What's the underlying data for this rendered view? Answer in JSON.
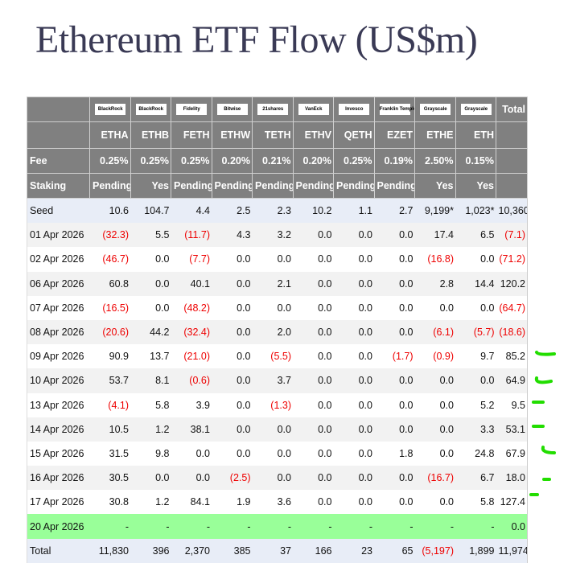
{
  "title": "Ethereum ETF Flow (US$m)",
  "issuers": [
    "BlackRock",
    "BlackRock",
    "Fidelity",
    "Bitwise",
    "21shares",
    "VanEck",
    "Invesco",
    "Franklin Templeton",
    "Grayscale",
    "Grayscale"
  ],
  "tickers": [
    "ETHA",
    "ETHB",
    "FETH",
    "ETHW",
    "TETH",
    "ETHV",
    "QETH",
    "EZET",
    "ETHE",
    "ETH"
  ],
  "total_label": "Total",
  "fee_label": "Fee",
  "fees": [
    "0.25%",
    "0.25%",
    "0.25%",
    "0.20%",
    "0.21%",
    "0.20%",
    "0.25%",
    "0.19%",
    "2.50%",
    "0.15%"
  ],
  "staking_label": "Staking",
  "staking": [
    "Pending",
    "Yes",
    "Pending",
    "Pending",
    "Pending",
    "Pending",
    "Pending",
    "Pending",
    "Yes",
    "Yes"
  ],
  "rows": [
    {
      "label": "Seed",
      "values": [
        "10.6",
        "104.7",
        "4.4",
        "2.5",
        "2.3",
        "10.2",
        "1.1",
        "2.7",
        "9,199*",
        "1,023*",
        "10,360"
      ],
      "style": "seed"
    },
    {
      "label": "01 Apr 2026",
      "values": [
        "(32.3)",
        "5.5",
        "(11.7)",
        "4.3",
        "3.2",
        "0.0",
        "0.0",
        "0.0",
        "17.4",
        "6.5",
        "(7.1)"
      ]
    },
    {
      "label": "02 Apr 2026",
      "values": [
        "(46.7)",
        "0.0",
        "(7.7)",
        "0.0",
        "0.0",
        "0.0",
        "0.0",
        "0.0",
        "(16.8)",
        "0.0",
        "(71.2)"
      ]
    },
    {
      "label": "06 Apr 2026",
      "values": [
        "60.8",
        "0.0",
        "40.1",
        "0.0",
        "2.1",
        "0.0",
        "0.0",
        "0.0",
        "2.8",
        "14.4",
        "120.2"
      ]
    },
    {
      "label": "07 Apr 2026",
      "values": [
        "(16.5)",
        "0.0",
        "(48.2)",
        "0.0",
        "0.0",
        "0.0",
        "0.0",
        "0.0",
        "0.0",
        "0.0",
        "(64.7)"
      ]
    },
    {
      "label": "08 Apr 2026",
      "values": [
        "(20.6)",
        "44.2",
        "(32.4)",
        "0.0",
        "2.0",
        "0.0",
        "0.0",
        "0.0",
        "(6.1)",
        "(5.7)",
        "(18.6)"
      ]
    },
    {
      "label": "09 Apr 2026",
      "values": [
        "90.9",
        "13.7",
        "(21.0)",
        "0.0",
        "(5.5)",
        "0.0",
        "0.0",
        "(1.7)",
        "(0.9)",
        "9.7",
        "85.2"
      ]
    },
    {
      "label": "10 Apr 2026",
      "values": [
        "53.7",
        "8.1",
        "(0.6)",
        "0.0",
        "3.7",
        "0.0",
        "0.0",
        "0.0",
        "0.0",
        "0.0",
        "64.9"
      ]
    },
    {
      "label": "13 Apr 2026",
      "values": [
        "(4.1)",
        "5.8",
        "3.9",
        "0.0",
        "(1.3)",
        "0.0",
        "0.0",
        "0.0",
        "0.0",
        "5.2",
        "9.5"
      ]
    },
    {
      "label": "14 Apr 2026",
      "values": [
        "10.5",
        "1.2",
        "38.1",
        "0.0",
        "0.0",
        "0.0",
        "0.0",
        "0.0",
        "0.0",
        "3.3",
        "53.1"
      ]
    },
    {
      "label": "15 Apr 2026",
      "values": [
        "31.5",
        "9.8",
        "0.0",
        "0.0",
        "0.0",
        "0.0",
        "0.0",
        "1.8",
        "0.0",
        "24.8",
        "67.9"
      ]
    },
    {
      "label": "16 Apr 2026",
      "values": [
        "30.5",
        "0.0",
        "0.0",
        "(2.5)",
        "0.0",
        "0.0",
        "0.0",
        "0.0",
        "(16.7)",
        "6.7",
        "18.0"
      ]
    },
    {
      "label": "17 Apr 2026",
      "values": [
        "30.8",
        "1.2",
        "84.1",
        "1.9",
        "3.6",
        "0.0",
        "0.0",
        "0.0",
        "0.0",
        "5.8",
        "127.4"
      ]
    },
    {
      "label": "20 Apr 2026",
      "values": [
        "-",
        "-",
        "-",
        "-",
        "-",
        "-",
        "-",
        "-",
        "-",
        "-",
        "0.0"
      ],
      "style": "hl"
    },
    {
      "label": "Total",
      "values": [
        "11,830",
        "396",
        "2,370",
        "385",
        "37",
        "166",
        "23",
        "65",
        "(5,197)",
        "1,899",
        "11,974"
      ],
      "style": "tot"
    }
  ],
  "colors": {
    "header_bg": "#808080",
    "negative": "#ee0000",
    "highlight": "#99ff99",
    "annotation": "#22dd00"
  }
}
